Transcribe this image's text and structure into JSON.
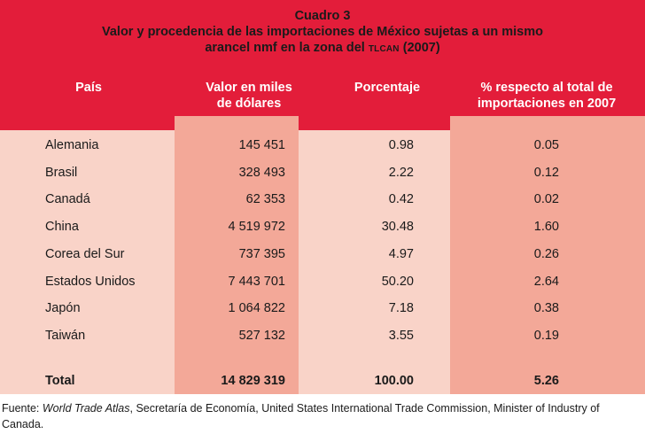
{
  "table": {
    "number": "Cuadro 3",
    "title_line1": "Valor y procedencia de las importaciones de México sujetas a un mismo",
    "title_line2_pre": "arancel nmf en la zona del",
    "title_line2_abbr": "TLCAN",
    "title_line2_post": "(2007)",
    "columns": {
      "country": "País",
      "value_line1": "Valor en miles",
      "value_line2": "de dólares",
      "percent": "Porcentaje",
      "share_line1": "% respecto al total de",
      "share_line2": "importaciones en 2007"
    },
    "rows": [
      {
        "country": "Alemania",
        "value": "145 451",
        "percent": "0.98",
        "share": "0.05"
      },
      {
        "country": "Brasil",
        "value": "328 493",
        "percent": "2.22",
        "share": "0.12"
      },
      {
        "country": "Canadá",
        "value": "62 353",
        "percent": "0.42",
        "share": "0.02"
      },
      {
        "country": "China",
        "value": "4 519 972",
        "percent": "30.48",
        "share": "1.60"
      },
      {
        "country": "Corea del Sur",
        "value": "737 395",
        "percent": "4.97",
        "share": "0.26"
      },
      {
        "country": "Estados Unidos",
        "value": "7 443 701",
        "percent": "50.20",
        "share": "2.64"
      },
      {
        "country": "Japón",
        "value": "1 064 822",
        "percent": "7.18",
        "share": "0.38"
      },
      {
        "country": "Taiwán",
        "value": "527 132",
        "percent": "3.55",
        "share": "0.19"
      }
    ],
    "total": {
      "label": "Total",
      "value": "14 829 319",
      "percent": "100.00",
      "share": "5.26"
    }
  },
  "footer": {
    "label": "Fuente:",
    "source_italic": "World Trade Atlas",
    "rest": ", Secretaría de Economía, United States International Trade Commission, Minister of Industry of Canada."
  }
}
